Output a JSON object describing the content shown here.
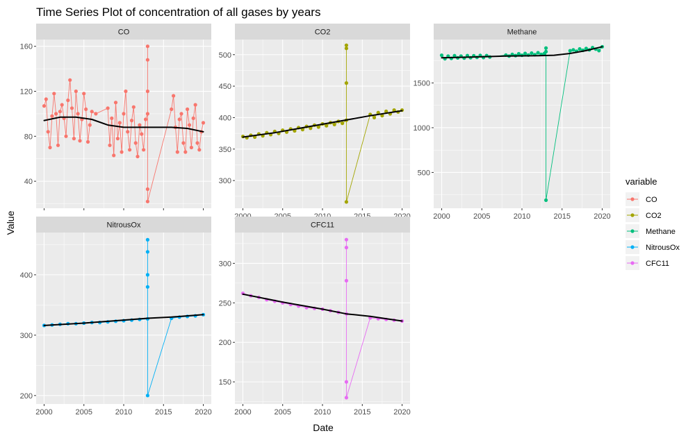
{
  "chart_data": {
    "type": "line",
    "title": "Time Series Plot of concentration of all gases by years",
    "xlabel": "Date",
    "ylabel": "Value",
    "grid": true,
    "legend_placement": "right",
    "legend_title": "variable",
    "smooth_color": "#000000",
    "panel_bg": "#ebebeb",
    "strip_bg": "#d9d9d9",
    "x_ticks": [
      "2000",
      "2005",
      "2010",
      "2015",
      "2020"
    ],
    "series": [
      {
        "name": "CO",
        "color": "#f8766d",
        "ylim": [
          16,
          166
        ],
        "y_ticks": [
          40,
          80,
          120,
          160
        ],
        "x": [
          2000.0,
          2000.25,
          2000.5,
          2000.75,
          2001.0,
          2001.25,
          2001.5,
          2001.75,
          2002.0,
          2002.25,
          2002.5,
          2002.75,
          2003.0,
          2003.25,
          2003.5,
          2003.75,
          2004.0,
          2004.25,
          2004.5,
          2004.75,
          2005.0,
          2005.25,
          2005.5,
          2005.75,
          2006.0,
          2006.5,
          2008.0,
          2008.25,
          2008.5,
          2008.75,
          2009.0,
          2009.25,
          2009.5,
          2009.75,
          2010.0,
          2010.25,
          2010.5,
          2010.75,
          2011.0,
          2011.25,
          2011.5,
          2011.75,
          2012.0,
          2012.25,
          2012.5,
          2012.75,
          2013.0,
          2013.0,
          2013.0,
          2013.0,
          2013.0,
          2013.0,
          2016.0,
          2016.25,
          2016.5,
          2016.75,
          2017.0,
          2017.25,
          2017.5,
          2017.75,
          2018.0,
          2018.25,
          2018.5,
          2018.75,
          2019.0,
          2019.25,
          2019.5,
          2019.75,
          2020.0
        ],
        "values": [
          107,
          113,
          84,
          70,
          98,
          118,
          100,
          72,
          102,
          108,
          96,
          80,
          112,
          130,
          105,
          78,
          120,
          100,
          76,
          95,
          118,
          104,
          75,
          90,
          102,
          100,
          105,
          72,
          96,
          63,
          110,
          78,
          92,
          66,
          100,
          120,
          84,
          68,
          94,
          106,
          74,
          62,
          90,
          82,
          68,
          95,
          100,
          120,
          160,
          148,
          33,
          22,
          104,
          116,
          88,
          66,
          95,
          100,
          74,
          66,
          104,
          90,
          70,
          96,
          108,
          74,
          68,
          84,
          92
        ],
        "smooth": [
          [
            2000,
            94
          ],
          [
            2002,
            97
          ],
          [
            2004,
            97
          ],
          [
            2006,
            95
          ],
          [
            2008,
            90
          ],
          [
            2010,
            88
          ],
          [
            2012,
            88
          ],
          [
            2014,
            88
          ],
          [
            2016,
            88
          ],
          [
            2018,
            87
          ],
          [
            2020,
            84
          ]
        ]
      },
      {
        "name": "CO2",
        "color": "#a3a500",
        "ylim": [
          256,
          524
        ],
        "y_ticks": [
          300,
          350,
          400,
          450,
          500
        ],
        "x": [
          2000.0,
          2000.5,
          2001.0,
          2001.5,
          2002.0,
          2002.5,
          2003.0,
          2003.5,
          2004.0,
          2004.5,
          2005.0,
          2005.5,
          2006.0,
          2006.5,
          2007.0,
          2007.5,
          2008.0,
          2008.5,
          2009.0,
          2009.5,
          2010.0,
          2010.5,
          2011.0,
          2011.5,
          2012.0,
          2012.5,
          2013.0,
          2013.0,
          2013.0,
          2013.0,
          2013.0,
          2016.0,
          2016.5,
          2017.0,
          2017.5,
          2018.0,
          2018.5,
          2019.0,
          2019.5,
          2020.0
        ],
        "values": [
          370,
          368,
          372,
          369,
          374,
          371,
          376,
          373,
          378,
          375,
          380,
          377,
          382,
          379,
          384,
          381,
          386,
          383,
          388,
          385,
          390,
          387,
          392,
          389,
          394,
          391,
          396,
          455,
          515,
          510,
          266,
          405,
          400,
          408,
          403,
          410,
          406,
          412,
          409,
          412
        ],
        "smooth": [
          [
            2000,
            369
          ],
          [
            2004,
            376
          ],
          [
            2008,
            385
          ],
          [
            2012,
            394
          ],
          [
            2016,
            403
          ],
          [
            2020,
            411
          ]
        ]
      },
      {
        "name": "Methane",
        "color": "#00bf7d",
        "ylim": [
          100,
          1985
        ],
        "y_ticks": [
          500,
          1000,
          1500
        ],
        "x": [
          2000.0,
          2000.4,
          2000.8,
          2001.2,
          2001.6,
          2002.0,
          2002.4,
          2002.8,
          2003.2,
          2003.6,
          2004.0,
          2004.4,
          2004.8,
          2005.2,
          2005.6,
          2006.0,
          2008.0,
          2008.4,
          2008.8,
          2009.2,
          2009.6,
          2010.0,
          2010.4,
          2010.8,
          2011.2,
          2011.6,
          2012.0,
          2012.4,
          2012.8,
          2013.0,
          2013.0,
          2013.0,
          2016.0,
          2016.4,
          2016.8,
          2017.2,
          2017.6,
          2018.0,
          2018.4,
          2018.8,
          2019.2,
          2019.6,
          2020.0
        ],
        "values": [
          1810,
          1770,
          1800,
          1775,
          1805,
          1780,
          1800,
          1778,
          1806,
          1782,
          1804,
          1786,
          1808,
          1784,
          1806,
          1790,
          1812,
          1800,
          1820,
          1806,
          1826,
          1810,
          1830,
          1812,
          1834,
          1816,
          1838,
          1820,
          1830,
          1890,
          1850,
          190,
          1860,
          1870,
          1855,
          1880,
          1865,
          1885,
          1870,
          1895,
          1878,
          1862,
          1905
        ],
        "smooth": [
          [
            2000,
            1782
          ],
          [
            2004,
            1790
          ],
          [
            2008,
            1800
          ],
          [
            2012,
            1805
          ],
          [
            2014,
            1810
          ],
          [
            2016,
            1830
          ],
          [
            2018,
            1862
          ],
          [
            2020,
            1905
          ]
        ]
      },
      {
        "name": "NitrousOx",
        "color": "#00b0f6",
        "ylim": [
          186,
          470
        ],
        "y_ticks": [
          200,
          300,
          400
        ],
        "x": [
          2000.0,
          2001.0,
          2002.0,
          2003.0,
          2004.0,
          2005.0,
          2006.0,
          2007.0,
          2008.0,
          2009.0,
          2010.0,
          2011.0,
          2012.0,
          2013.0,
          2013.0,
          2013.0,
          2013.0,
          2013.0,
          2013.0,
          2016.0,
          2017.0,
          2018.0,
          2019.0,
          2020.0
        ],
        "values": [
          316,
          317,
          318,
          319,
          319,
          320,
          321,
          321,
          322,
          323,
          324,
          325,
          326,
          327,
          380,
          458,
          438,
          400,
          200,
          328,
          330,
          331,
          332,
          334
        ],
        "smooth": [
          [
            2000,
            316
          ],
          [
            2005,
            320
          ],
          [
            2010,
            325
          ],
          [
            2013,
            328
          ],
          [
            2016,
            330
          ],
          [
            2020,
            334
          ]
        ]
      },
      {
        "name": "CFC11",
        "color": "#e76bf3",
        "ylim": [
          122,
          339
        ],
        "y_ticks": [
          150,
          200,
          250,
          300
        ],
        "x": [
          2000.0,
          2001.0,
          2002.0,
          2003.0,
          2004.0,
          2005.0,
          2006.0,
          2007.0,
          2008.0,
          2009.0,
          2010.0,
          2011.0,
          2012.0,
          2013.0,
          2013.0,
          2013.0,
          2013.0,
          2013.0,
          2013.0,
          2016.0,
          2017.0,
          2018.0,
          2019.0,
          2020.0
        ],
        "values": [
          262,
          259,
          257,
          254,
          252,
          250,
          248,
          246,
          244,
          243,
          242,
          240,
          238,
          236,
          278,
          330,
          320,
          150,
          130,
          231,
          230,
          229,
          228,
          227
        ],
        "smooth": [
          [
            2000,
            261
          ],
          [
            2005,
            251
          ],
          [
            2010,
            242
          ],
          [
            2013,
            236
          ],
          [
            2016,
            233
          ],
          [
            2020,
            227
          ]
        ]
      }
    ]
  }
}
